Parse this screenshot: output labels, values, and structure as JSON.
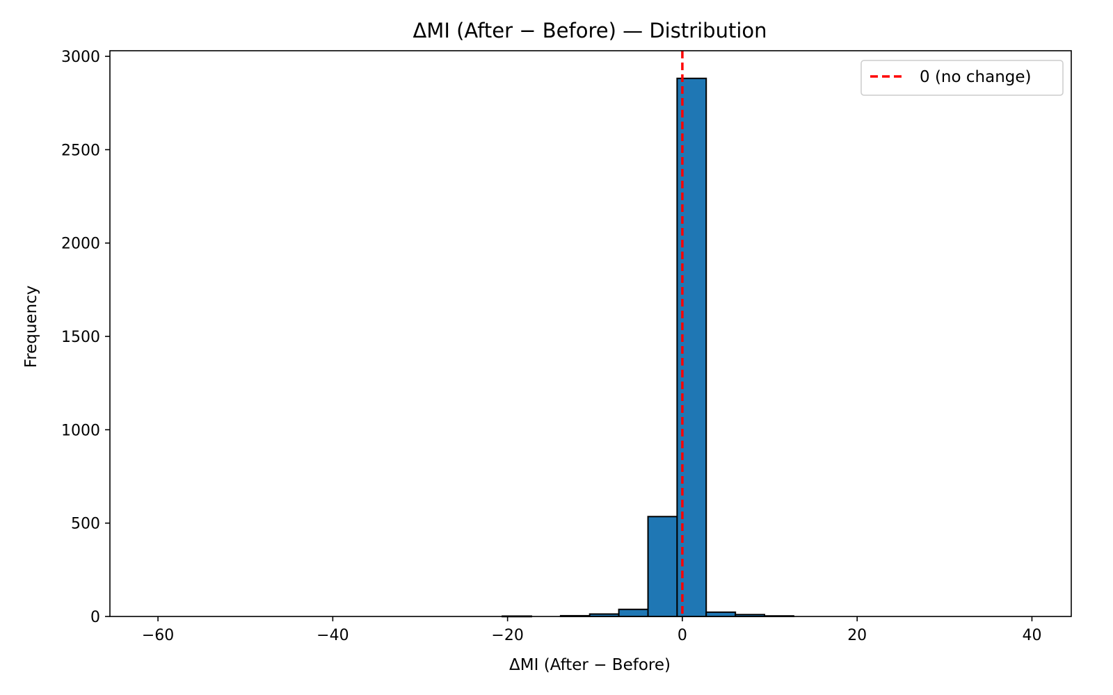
{
  "chart_data": {
    "type": "bar",
    "title": "ΔMI (After − Before) — Distribution",
    "xlabel": "ΔMI (After − Before)",
    "ylabel": "Frequency",
    "xlim": [
      -65.5,
      44.5
    ],
    "ylim": [
      0,
      3030
    ],
    "xticks": [
      -60,
      -40,
      -20,
      0,
      20,
      40
    ],
    "xtick_labels": [
      "−60",
      "−40",
      "−20",
      "0",
      "20",
      "40"
    ],
    "yticks": [
      0,
      500,
      1000,
      1500,
      2000,
      2500,
      3000
    ],
    "ytick_labels": [
      "0",
      "500",
      "1000",
      "1500",
      "2000",
      "2500",
      "3000"
    ],
    "bin_edges": [
      -60.6,
      -57.27,
      -53.93,
      -50.6,
      -47.27,
      -43.93,
      -40.6,
      -37.27,
      -33.93,
      -30.6,
      -27.27,
      -23.93,
      -20.6,
      -17.27,
      -13.93,
      -10.6,
      -7.27,
      -3.93,
      -0.6,
      2.73,
      6.07,
      9.4,
      12.73,
      16.07,
      19.4,
      22.73,
      26.07,
      29.4,
      32.73,
      36.07,
      39.4
    ],
    "counts": [
      0,
      0,
      0,
      0,
      0,
      0,
      0,
      0,
      0,
      0,
      0,
      0,
      2,
      0,
      4,
      13,
      38,
      535,
      2882,
      23,
      10,
      3,
      0,
      0,
      0,
      0,
      0,
      0,
      0,
      0
    ],
    "bar_color": "#1f77b4",
    "bar_edge_color": "#000000",
    "reference_line": {
      "x": 0,
      "label": "0 (no change)",
      "color": "#ff0000",
      "style": "dashed"
    },
    "legend_position": "top-right",
    "grid": false
  }
}
